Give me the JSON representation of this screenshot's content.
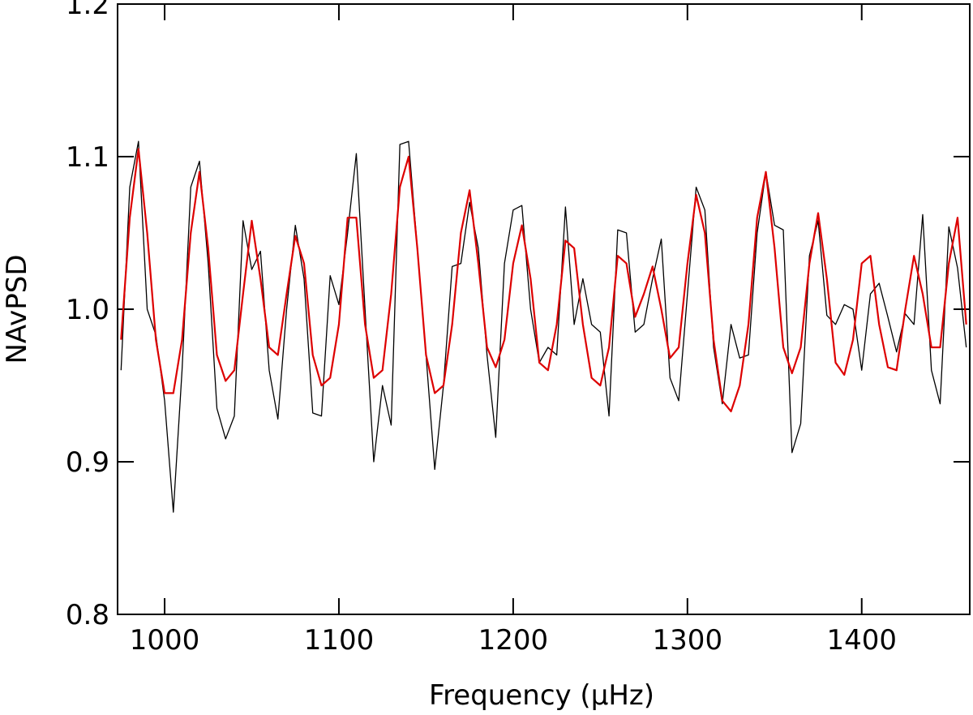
{
  "chart_data": {
    "type": "line",
    "x_label": "Frequency (μHz)",
    "y_label": "NAvPSD",
    "x": [
      975,
      980,
      985,
      990,
      995,
      1000,
      1005,
      1010,
      1015,
      1020,
      1025,
      1030,
      1035,
      1040,
      1045,
      1050,
      1055,
      1060,
      1065,
      1070,
      1075,
      1080,
      1085,
      1090,
      1095,
      1100,
      1105,
      1110,
      1115,
      1120,
      1125,
      1130,
      1135,
      1140,
      1145,
      1150,
      1155,
      1160,
      1165,
      1170,
      1175,
      1180,
      1185,
      1190,
      1195,
      1200,
      1205,
      1210,
      1215,
      1220,
      1225,
      1230,
      1235,
      1240,
      1245,
      1250,
      1255,
      1260,
      1265,
      1270,
      1275,
      1280,
      1285,
      1290,
      1295,
      1300,
      1305,
      1310,
      1315,
      1320,
      1325,
      1330,
      1335,
      1340,
      1345,
      1350,
      1355,
      1360,
      1365,
      1370,
      1375,
      1380,
      1385,
      1390,
      1395,
      1400,
      1405,
      1410,
      1415,
      1420,
      1425,
      1430,
      1435,
      1440,
      1445,
      1450,
      1455,
      1460
    ],
    "series": [
      {
        "color": "#000000",
        "width": 1.3,
        "values": [
          0.96,
          1.08,
          1.11,
          1.0,
          0.983,
          0.94,
          0.867,
          0.96,
          1.08,
          1.097,
          1.03,
          0.935,
          0.915,
          0.93,
          1.058,
          1.026,
          1.038,
          0.96,
          0.928,
          1.0,
          1.055,
          1.02,
          0.932,
          0.93,
          1.022,
          1.003,
          1.05,
          1.102,
          1.0,
          0.9,
          0.95,
          0.924,
          1.108,
          1.11,
          1.04,
          0.97,
          0.895,
          0.95,
          1.028,
          1.03,
          1.07,
          1.04,
          0.97,
          0.916,
          1.03,
          1.065,
          1.068,
          1.0,
          0.965,
          0.975,
          0.97,
          1.067,
          0.99,
          1.02,
          0.99,
          0.985,
          0.93,
          1.052,
          1.05,
          0.985,
          0.99,
          1.02,
          1.046,
          0.955,
          0.94,
          1.01,
          1.08,
          1.065,
          0.975,
          0.938,
          0.99,
          0.968,
          0.97,
          1.05,
          1.09,
          1.055,
          1.052,
          0.906,
          0.925,
          1.035,
          1.058,
          0.996,
          0.99,
          1.003,
          1.0,
          0.96,
          1.01,
          1.017,
          0.995,
          0.972,
          0.997,
          0.99,
          1.062,
          0.96,
          0.938,
          1.054,
          1.027,
          0.975
        ]
      },
      {
        "color": "#dd0000",
        "width": 2.2,
        "values": [
          0.98,
          1.06,
          1.105,
          1.05,
          0.98,
          0.945,
          0.945,
          0.98,
          1.05,
          1.09,
          1.04,
          0.97,
          0.953,
          0.96,
          1.01,
          1.058,
          1.02,
          0.975,
          0.97,
          1.01,
          1.048,
          1.03,
          0.97,
          0.95,
          0.955,
          0.99,
          1.06,
          1.06,
          0.99,
          0.955,
          0.96,
          1.01,
          1.08,
          1.1,
          1.04,
          0.97,
          0.945,
          0.95,
          0.99,
          1.05,
          1.078,
          1.03,
          0.975,
          0.962,
          0.98,
          1.03,
          1.055,
          1.02,
          0.965,
          0.96,
          0.99,
          1.045,
          1.04,
          0.99,
          0.955,
          0.95,
          0.975,
          1.035,
          1.03,
          0.995,
          1.01,
          1.028,
          1.0,
          0.968,
          0.975,
          1.03,
          1.075,
          1.05,
          0.98,
          0.94,
          0.933,
          0.95,
          0.99,
          1.06,
          1.09,
          1.04,
          0.975,
          0.958,
          0.975,
          1.03,
          1.063,
          1.02,
          0.965,
          0.957,
          0.98,
          1.03,
          1.035,
          0.99,
          0.962,
          0.96,
          1.0,
          1.035,
          1.01,
          0.975,
          0.975,
          1.03,
          1.06,
          0.99
        ]
      }
    ],
    "xlim": [
      973,
      1462
    ],
    "ylim": [
      0.8,
      1.2
    ],
    "xticks": [
      1000,
      1100,
      1200,
      1300,
      1400
    ],
    "yticks": [
      0.8,
      0.9,
      {
        "value": 1,
        "label": "1.0"
      },
      1.1,
      1.2
    ]
  }
}
